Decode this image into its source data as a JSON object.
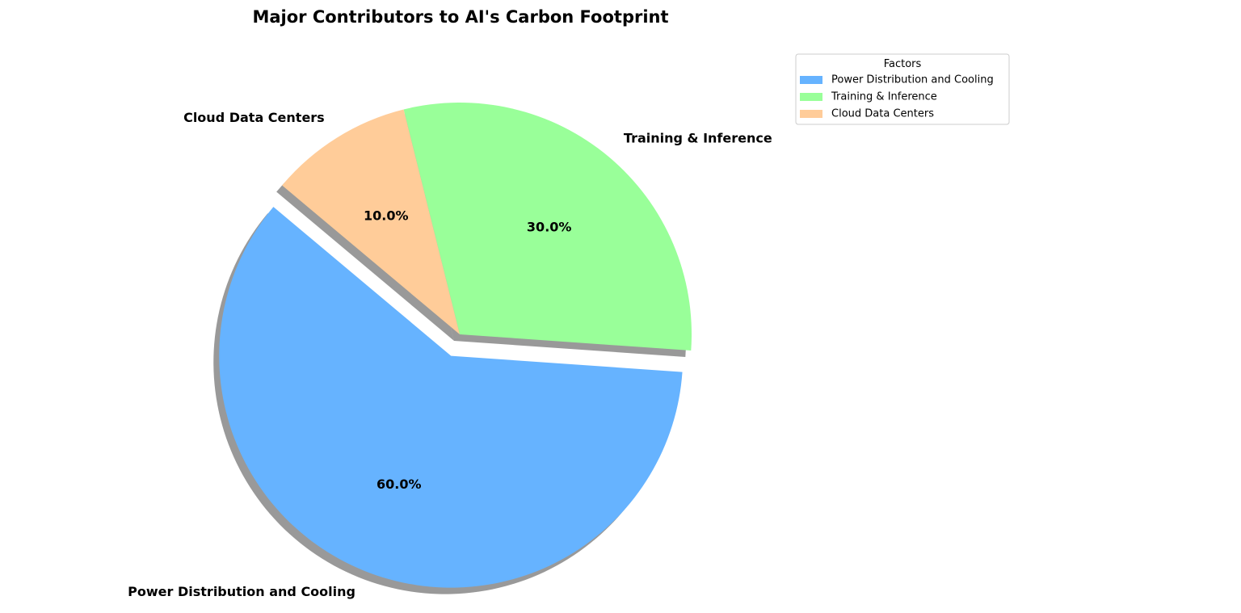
{
  "chart_data": {
    "type": "pie",
    "title": "Major Contributors to AI's Carbon Footprint",
    "legend": {
      "title": "Factors",
      "placement": "top-right"
    },
    "slices": [
      {
        "label": "Power Distribution and Cooling",
        "value": 60,
        "pct_label": "60.0%",
        "color": "#66b3ff",
        "exploded": true
      },
      {
        "label": "Training & Inference",
        "value": 30,
        "pct_label": "30.0%",
        "color": "#99ff99",
        "exploded": false
      },
      {
        "label": "Cloud Data Centers",
        "value": 10,
        "pct_label": "10.0%",
        "color": "#ffcc99",
        "exploded": false
      }
    ],
    "start_angle_deg": 140,
    "shadow": true
  }
}
